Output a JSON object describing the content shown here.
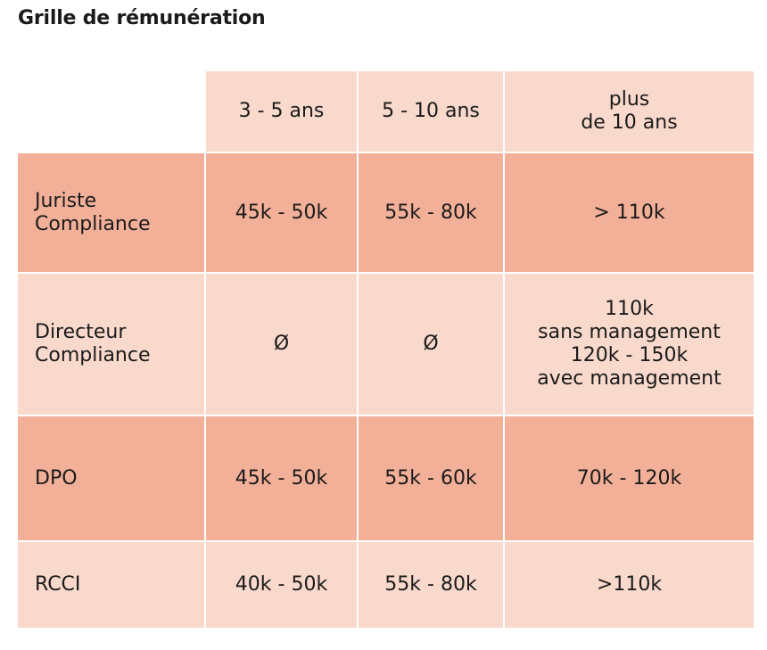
{
  "title": "Grille de rémunération",
  "table": {
    "headers": [
      "3 - 5 ans",
      "5 - 10 ans",
      "plus\nde 10 ans"
    ],
    "rows": [
      {
        "label": "Juriste\nCompliance",
        "values": [
          "45k - 50k",
          "55k - 80k",
          "> 110k"
        ]
      },
      {
        "label": "Directeur\nCompliance",
        "values": [
          "Ø",
          "Ø",
          "110k\nsans management\n120k - 150k\navec management"
        ]
      },
      {
        "label": "DPO",
        "values": [
          "45k - 50k",
          "55k - 60k",
          "70k - 120k"
        ]
      },
      {
        "label": "RCCI",
        "values": [
          "40k - 50k",
          "55k - 80k",
          ">110k"
        ]
      }
    ]
  },
  "colors": {
    "light_cell": "#f9d9cc",
    "dark_cell": "#f3b099"
  }
}
